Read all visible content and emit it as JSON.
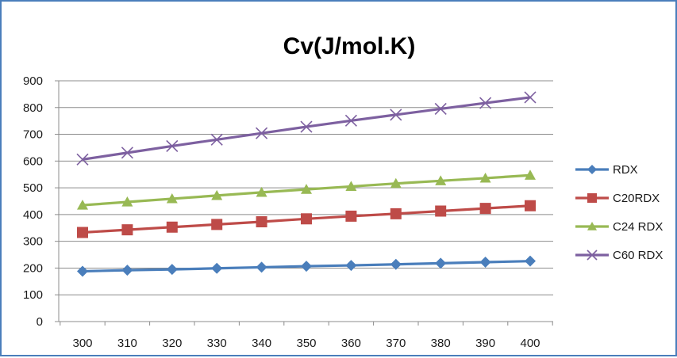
{
  "chart_data": {
    "type": "line",
    "title": "Cv(J/mol.K)",
    "xlabel": "",
    "ylabel": "",
    "x": [
      300,
      310,
      320,
      330,
      340,
      350,
      360,
      370,
      380,
      390,
      400
    ],
    "ylim": [
      0,
      900
    ],
    "yticks": [
      0,
      100,
      200,
      300,
      400,
      500,
      600,
      700,
      800,
      900
    ],
    "grid": true,
    "legend_position": "right",
    "series": [
      {
        "name": "RDX",
        "color": "#4a7ebb",
        "marker": "diamond",
        "values": [
          188,
          192,
          195,
          199,
          203,
          207,
          210,
          214,
          218,
          222,
          226
        ]
      },
      {
        "name": "C20RDX",
        "color": "#be4b48",
        "marker": "square",
        "values": [
          333,
          343,
          353,
          363,
          373,
          384,
          394,
          403,
          413,
          423,
          433
        ]
      },
      {
        "name": "C24 RDX",
        "color": "#98b954",
        "marker": "triangle",
        "values": [
          435,
          447,
          459,
          471,
          483,
          494,
          505,
          516,
          526,
          536,
          547
        ]
      },
      {
        "name": "C60 RDX",
        "color": "#7d60a0",
        "marker": "x",
        "values": [
          606,
          631,
          656,
          680,
          704,
          728,
          751,
          773,
          795,
          817,
          838
        ]
      }
    ]
  }
}
